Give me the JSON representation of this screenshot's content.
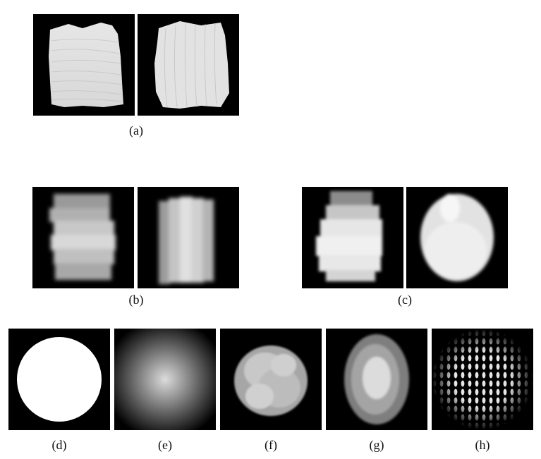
{
  "figure": {
    "captions": {
      "a": "(a)",
      "b": "(b)",
      "c": "(c)",
      "d": "(d)",
      "e": "(e)",
      "f": "(f)",
      "g": "(g)",
      "h": "(h)"
    }
  }
}
